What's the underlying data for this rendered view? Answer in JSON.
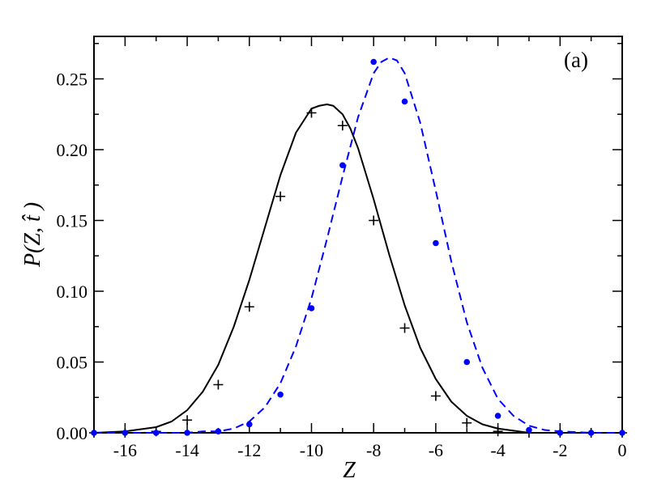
{
  "chart_data": {
    "type": "scatter",
    "panel_label": "(a)",
    "xlabel": "Z",
    "ylabel": "P(Z, t̂ )",
    "xlim": [
      -17,
      0
    ],
    "ylim": [
      0,
      0.28
    ],
    "xticks": [
      -16,
      -14,
      -12,
      -10,
      -8,
      -6,
      -4,
      -2,
      0
    ],
    "xtick_labels": [
      "-16",
      "-14",
      "-12",
      "-10",
      "-8",
      "-6",
      "-4",
      "-2",
      "0"
    ],
    "yticks": [
      0,
      0.05,
      0.1,
      0.15,
      0.2,
      0.25
    ],
    "ytick_labels": [
      "0.00",
      "0.05",
      "0.10",
      "0.15",
      "0.20",
      "0.25"
    ],
    "grid": false,
    "series": [
      {
        "marker": "plus",
        "color": "#000000",
        "x": [
          -17,
          -16,
          -15,
          -14,
          -13,
          -12,
          -11,
          -10,
          -9,
          -8,
          -7,
          -6,
          -5,
          -4,
          -3,
          -2,
          -1,
          0
        ],
        "y": [
          0.0,
          0.0,
          0.001,
          0.009,
          0.034,
          0.089,
          0.167,
          0.226,
          0.217,
          0.15,
          0.074,
          0.026,
          0.007,
          0.001,
          0.0,
          0.0,
          0.0,
          0.0
        ]
      },
      {
        "marker": "circle",
        "color": "#0000ff",
        "x": [
          -17,
          -16,
          -15,
          -14,
          -13,
          -12,
          -11,
          -10,
          -9,
          -8,
          -7,
          -6,
          -5,
          -4,
          -3,
          -2,
          -1,
          0
        ],
        "y": [
          0.0,
          0.0,
          0.0,
          0.0,
          0.001,
          0.006,
          0.027,
          0.088,
          0.189,
          0.262,
          0.234,
          0.134,
          0.05,
          0.012,
          0.002,
          0.0,
          0.0,
          0.0
        ]
      },
      {
        "line": "solid",
        "color": "#000000",
        "x": [
          -17,
          -16,
          -15,
          -14.5,
          -14,
          -13.5,
          -13,
          -12.5,
          -12,
          -11.5,
          -11,
          -10.5,
          -10,
          -9.75,
          -9.5,
          -9.3,
          -9,
          -8.75,
          -8.5,
          -8,
          -7.5,
          -7,
          -6.5,
          -6,
          -5.5,
          -5,
          -4.5,
          -4,
          -3,
          -2,
          -1,
          0
        ],
        "y": [
          0.0,
          0.001,
          0.004,
          0.008,
          0.016,
          0.029,
          0.048,
          0.075,
          0.108,
          0.145,
          0.182,
          0.212,
          0.229,
          0.231,
          0.232,
          0.231,
          0.225,
          0.215,
          0.201,
          0.165,
          0.126,
          0.09,
          0.06,
          0.038,
          0.022,
          0.012,
          0.006,
          0.003,
          0.0,
          0.0,
          0.0,
          0.0
        ]
      },
      {
        "line": "dashed",
        "color": "#0000ff",
        "x": [
          -17,
          -15,
          -14,
          -13.5,
          -13,
          -12.5,
          -12,
          -11.5,
          -11,
          -10.5,
          -10,
          -9.5,
          -9,
          -8.5,
          -8,
          -7.75,
          -7.5,
          -7.25,
          -7,
          -6.5,
          -6,
          -5.5,
          -5,
          -4.5,
          -4,
          -3.5,
          -3,
          -2.5,
          -2,
          -1,
          0
        ],
        "y": [
          0.0,
          0.0,
          0.0,
          0.001,
          0.001,
          0.003,
          0.008,
          0.018,
          0.035,
          0.061,
          0.095,
          0.137,
          0.181,
          0.223,
          0.254,
          0.262,
          0.265,
          0.263,
          0.254,
          0.219,
          0.171,
          0.121,
          0.078,
          0.046,
          0.024,
          0.012,
          0.005,
          0.002,
          0.001,
          0.0,
          0.0
        ]
      }
    ]
  }
}
